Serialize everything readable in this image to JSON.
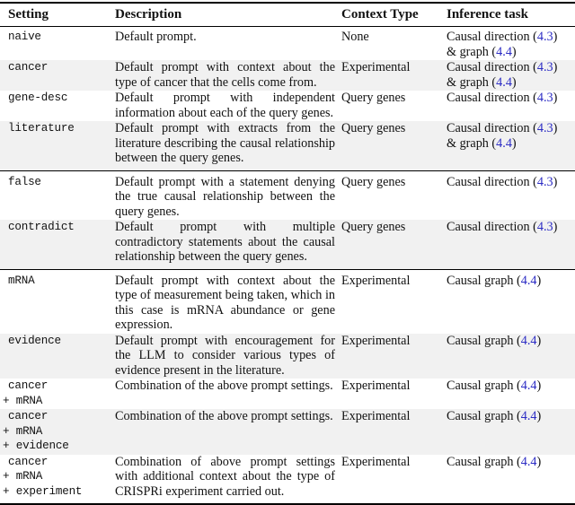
{
  "table": {
    "stripe_color": "#f1f1f1",
    "ref_color": "#2c2cc4",
    "columns": [
      "Setting",
      "Description",
      "Context Type",
      "Inference task"
    ],
    "rows": [
      {
        "setting": [
          "naive"
        ],
        "description": "Default prompt.",
        "context_type": "None",
        "inference": [
          {
            "text": "Causal direction ("
          },
          {
            "ref": "4.3"
          },
          {
            "text": ")"
          },
          {
            "br": true
          },
          {
            "text": "& graph ("
          },
          {
            "ref": "4.4"
          },
          {
            "text": ")"
          }
        ],
        "shaded": false,
        "group_start": false,
        "group_end": false
      },
      {
        "setting": [
          "cancer"
        ],
        "description": "Default prompt with context about the type of cancer that the cells come from.",
        "context_type": "Experimental",
        "inference": [
          {
            "text": "Causal direction ("
          },
          {
            "ref": "4.3"
          },
          {
            "text": ")"
          },
          {
            "br": true
          },
          {
            "text": "& graph ("
          },
          {
            "ref": "4.4"
          },
          {
            "text": ")"
          }
        ],
        "shaded": true,
        "group_start": false,
        "group_end": false
      },
      {
        "setting": [
          "gene-desc"
        ],
        "description": "Default prompt with independent information about each of the query genes.",
        "context_type": "Query genes",
        "inference": [
          {
            "text": "Causal direction ("
          },
          {
            "ref": "4.3"
          },
          {
            "text": ")"
          }
        ],
        "shaded": false,
        "group_start": false,
        "group_end": false
      },
      {
        "setting": [
          "literature"
        ],
        "description": "Default prompt with extracts from the literature describing the causal relationship between the query genes.",
        "context_type": "Query genes",
        "inference": [
          {
            "text": "Causal direction ("
          },
          {
            "ref": "4.3"
          },
          {
            "text": ")"
          },
          {
            "br": true
          },
          {
            "text": "& graph ("
          },
          {
            "ref": "4.4"
          },
          {
            "text": ")"
          }
        ],
        "shaded": true,
        "group_start": false,
        "group_end": true
      },
      {
        "setting": [
          "false"
        ],
        "description": "Default prompt with a statement denying the true causal relationship between the query genes.",
        "context_type": "Query genes",
        "inference": [
          {
            "text": "Causal direction ("
          },
          {
            "ref": "4.3"
          },
          {
            "text": ")"
          }
        ],
        "shaded": false,
        "group_start": true,
        "group_end": false
      },
      {
        "setting": [
          "contradict"
        ],
        "description": "Default prompt with multiple contradictory statements about the causal relationship between the query genes.",
        "context_type": "Query genes",
        "inference": [
          {
            "text": "Causal direction ("
          },
          {
            "ref": "4.3"
          },
          {
            "text": ")"
          }
        ],
        "shaded": true,
        "group_start": false,
        "group_end": true
      },
      {
        "setting": [
          "mRNA"
        ],
        "description": "Default prompt with context about the type of measurement being taken, which in this case is mRNA abundance or gene expression.",
        "context_type": "Experimental",
        "inference": [
          {
            "text": "Causal graph ("
          },
          {
            "ref": "4.4"
          },
          {
            "text": ")"
          }
        ],
        "shaded": false,
        "group_start": true,
        "group_end": false
      },
      {
        "setting": [
          "evidence"
        ],
        "description": "Default prompt with encouragement for the LLM to consider various types of evidence present in the literature.",
        "context_type": "Experimental",
        "inference": [
          {
            "text": "Causal graph ("
          },
          {
            "ref": "4.4"
          },
          {
            "text": ")"
          }
        ],
        "shaded": true,
        "group_start": false,
        "group_end": false
      },
      {
        "setting": [
          "cancer",
          "+ mRNA"
        ],
        "description": "Combination of the above prompt settings.",
        "context_type": "Experimental",
        "inference": [
          {
            "text": "Causal graph ("
          },
          {
            "ref": "4.4"
          },
          {
            "text": ")"
          }
        ],
        "shaded": false,
        "group_start": false,
        "group_end": false
      },
      {
        "setting": [
          "cancer",
          "+ mRNA",
          "+ evidence"
        ],
        "description": "Combination of the above prompt settings.",
        "context_type": "Experimental",
        "inference": [
          {
            "text": "Causal graph ("
          },
          {
            "ref": "4.4"
          },
          {
            "text": ")"
          }
        ],
        "shaded": true,
        "group_start": false,
        "group_end": false
      },
      {
        "setting": [
          "cancer",
          "+ mRNA",
          "+ experiment"
        ],
        "description": "Combination of above prompt settings with additional context about the type of CRISPRi experiment carried out.",
        "context_type": "Experimental",
        "inference": [
          {
            "text": "Causal graph ("
          },
          {
            "ref": "4.4"
          },
          {
            "text": ")"
          }
        ],
        "shaded": false,
        "group_start": false,
        "group_end": true
      }
    ]
  }
}
